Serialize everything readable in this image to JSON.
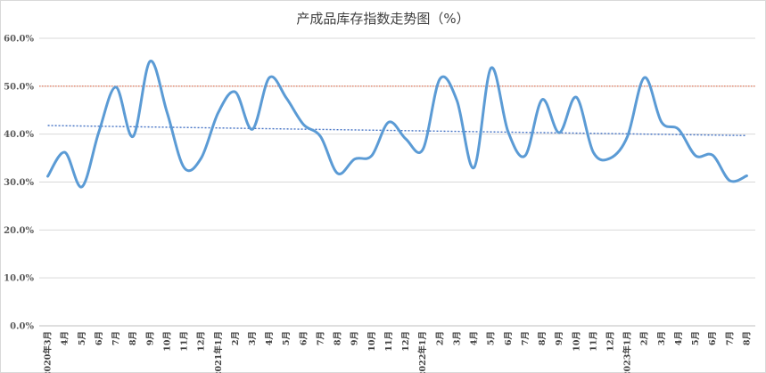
{
  "chart_data": {
    "type": "line",
    "title": "产成品库存指数走势图（%）",
    "categories": [
      "2020年3月",
      "4月",
      "5月",
      "6月",
      "7月",
      "8月",
      "9月",
      "10月",
      "11月",
      "12月",
      "2021年1月",
      "2月",
      "3月",
      "4月",
      "5月",
      "6月",
      "7月",
      "8月",
      "9月",
      "10月",
      "11月",
      "12月",
      "2022年1月",
      "2月",
      "3月",
      "4月",
      "5月",
      "6月",
      "7月",
      "8月",
      "9月",
      "10月",
      "11月",
      "12月",
      "2023年1月",
      "2月",
      "3月",
      "4月",
      "5月",
      "6月",
      "7月",
      "8月"
    ],
    "series": [
      {
        "values": [
          31.2,
          36.2,
          29.0,
          40.5,
          49.8,
          39.5,
          55.2,
          44.5,
          33.0,
          35.0,
          44.5,
          48.8,
          41.0,
          51.8,
          47.5,
          42.0,
          39.5,
          31.8,
          34.8,
          35.5,
          42.5,
          39.0,
          36.8,
          51.5,
          47.0,
          33.0,
          53.8,
          40.5,
          35.5,
          47.2,
          40.3,
          47.7,
          36.2,
          35.0,
          39.5,
          51.8,
          42.5,
          41.0,
          35.5,
          35.6,
          30.3,
          31.3
        ],
        "color": "#5b9bd5"
      }
    ],
    "reference_line": {
      "value": 50.0,
      "color": "#e46c4a",
      "style": "dotted"
    },
    "trendline": {
      "start": 41.8,
      "end": 39.7,
      "color": "#4472c4",
      "style": "dotted"
    },
    "ylim": [
      0,
      60
    ],
    "yticks": [
      "0.0%",
      "10.0%",
      "20.0%",
      "30.0%",
      "40.0%",
      "50.0%",
      "60.0%"
    ],
    "grid": true,
    "legend": "none"
  }
}
